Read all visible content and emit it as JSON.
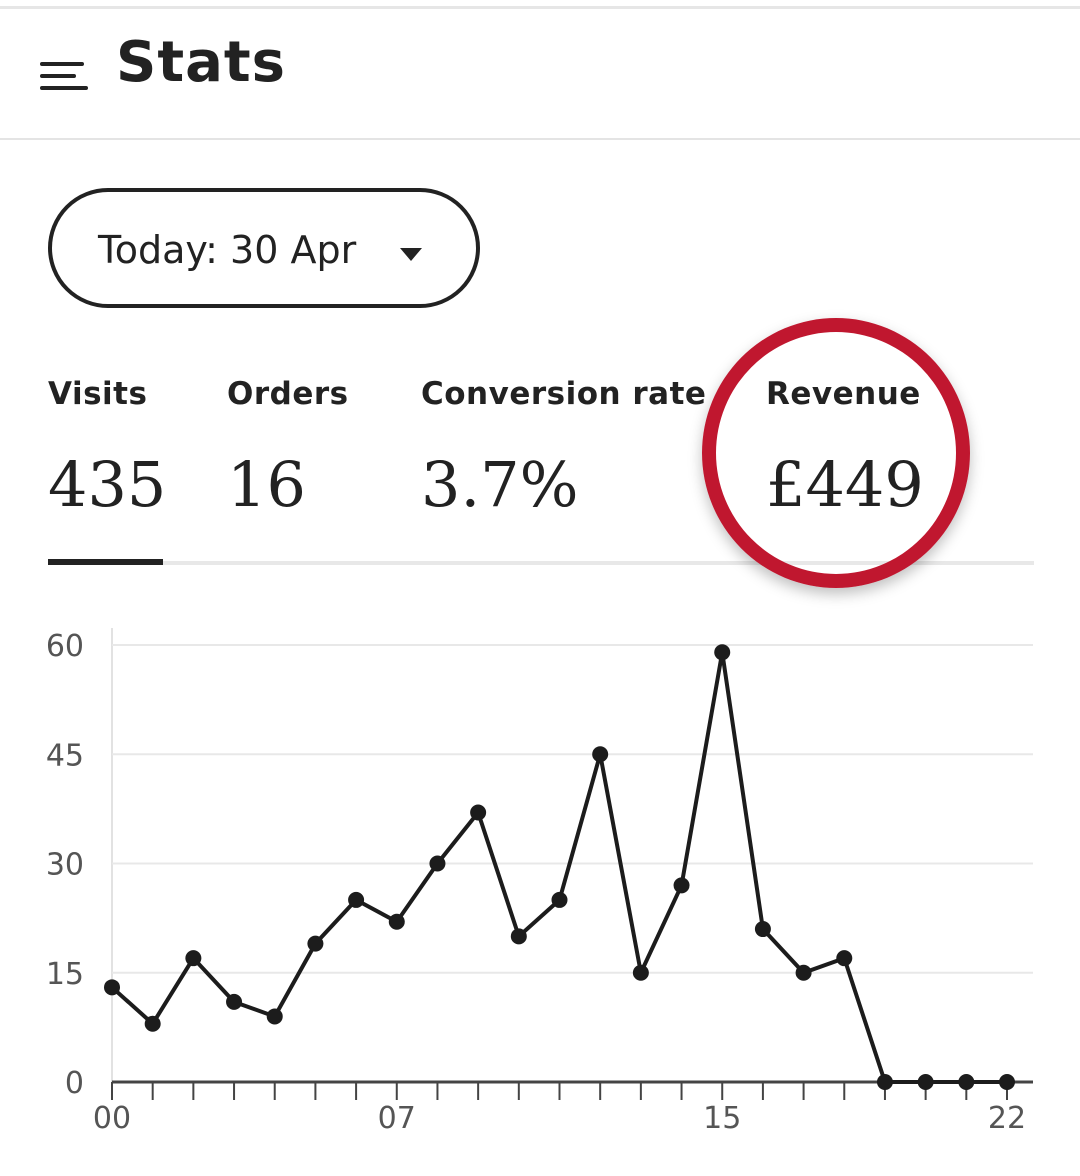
{
  "header": {
    "title": "Stats",
    "menu_icon": "menu-icon"
  },
  "date_filter": {
    "label": "Today: 30 Apr",
    "caret_icon": "caret-down-icon"
  },
  "metrics": [
    {
      "label": "Visits",
      "value": "435"
    },
    {
      "label": "Orders",
      "value": "16"
    },
    {
      "label": "Conversion rate",
      "value": "3.7%"
    },
    {
      "label": "Revenue",
      "value": "£449"
    }
  ],
  "active_tab": "Visits",
  "colors": {
    "text": "#222222",
    "highlight_circle": "#c0172f",
    "grid": "#e8e8e8",
    "axis_text": "#555555"
  },
  "chart_data": {
    "type": "line",
    "x": [
      0,
      1,
      2,
      3,
      4,
      5,
      6,
      7,
      8,
      9,
      10,
      11,
      12,
      13,
      14,
      15,
      16,
      17,
      18,
      19,
      20,
      21,
      22
    ],
    "x_tick_labels": [
      "00",
      "07",
      "15",
      "22"
    ],
    "x_tick_label_positions": [
      0,
      7,
      15,
      22
    ],
    "series": [
      {
        "values": [
          13,
          8,
          17,
          11,
          9,
          19,
          25,
          22,
          30,
          37,
          20,
          25,
          45,
          15,
          27,
          59,
          21,
          15,
          17,
          0,
          0,
          0,
          0
        ]
      }
    ],
    "y_tick_labels": [
      "0",
      "15",
      "30",
      "45",
      "60"
    ],
    "ylim": [
      0,
      60
    ],
    "grid": true
  }
}
